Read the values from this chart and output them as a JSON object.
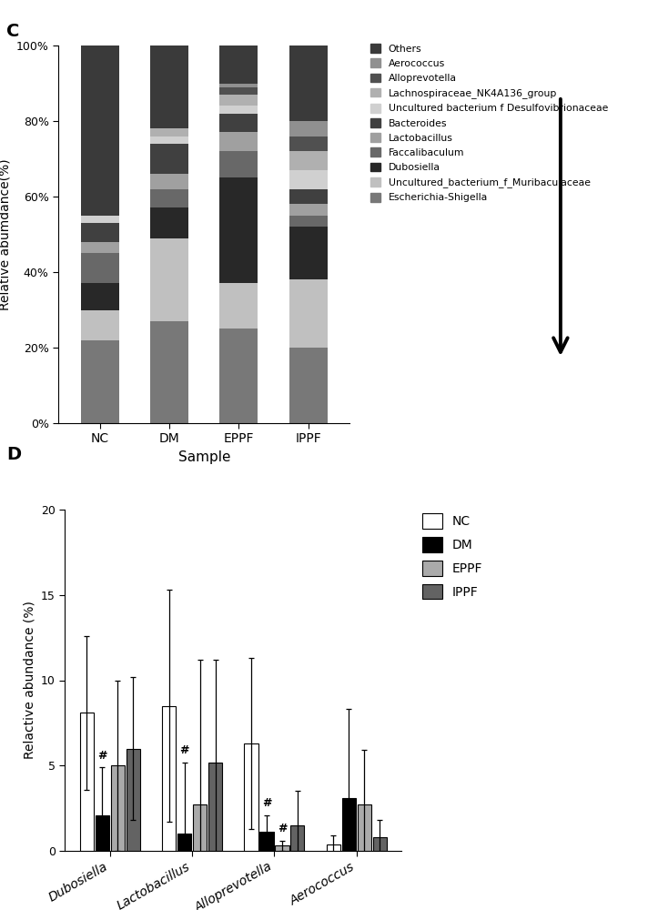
{
  "panel_C_label": "C",
  "panel_D_label": "D",
  "stacked_categories": [
    "NC",
    "DM",
    "EPPF",
    "IPPF"
  ],
  "stacked_xlabel": "Sample",
  "stacked_ylabel": "Relative abumdance(%)",
  "legend_labels": [
    "Others",
    "Aerococcus",
    "Alloprevotella",
    "Lachnospiraceae_NK4A136_group",
    "Uncultured bacterium f Desulfovibrionaceae",
    "Bacteroides",
    "Lactobacillus",
    "Faccalibaculum",
    "Dubosiella",
    "Uncultured_bacterium_f_Muribaculaceae",
    "Escherichia-Shigella"
  ],
  "legend_colors": [
    "#3a3a3a",
    "#909090",
    "#505050",
    "#b0b0b0",
    "#d0d0d0",
    "#404040",
    "#a0a0a0",
    "#686868",
    "#282828",
    "#c0c0c0",
    "#787878"
  ],
  "stacked_data_pct": {
    "NC": [
      45,
      0,
      0,
      0,
      2,
      5,
      3,
      8,
      7,
      8,
      22
    ],
    "DM": [
      22,
      0,
      0,
      2,
      2,
      8,
      4,
      5,
      8,
      22,
      27
    ],
    "EPPF": [
      10,
      1,
      2,
      3,
      2,
      5,
      5,
      7,
      28,
      12,
      25
    ],
    "IPPF": [
      20,
      4,
      4,
      5,
      5,
      4,
      3,
      3,
      14,
      18,
      20
    ]
  },
  "bar_chart_groups": [
    "Dubosiella",
    "Lactobacillus",
    "Alloprevotella",
    "Aerococcus"
  ],
  "bar_ylabel": "Relactive abundance (%)",
  "bar_ylim": [
    0,
    20
  ],
  "bar_yticks": [
    0,
    5,
    10,
    15,
    20
  ],
  "bar_group_colors": [
    "#ffffff",
    "#000000",
    "#aaaaaa",
    "#636363"
  ],
  "bar_group_labels": [
    "NC",
    "DM",
    "EPPF",
    "IPPF"
  ],
  "bar_data": {
    "Dubosiella": {
      "NC": 8.1,
      "DM": 2.1,
      "EPPF": 5.0,
      "IPPF": 6.0
    },
    "Lactobacillus": {
      "NC": 8.5,
      "DM": 1.0,
      "EPPF": 2.7,
      "IPPF": 5.2
    },
    "Alloprevotella": {
      "NC": 6.3,
      "DM": 1.1,
      "EPPF": 0.3,
      "IPPF": 1.5
    },
    "Aerococcus": {
      "NC": 0.4,
      "DM": 3.1,
      "EPPF": 2.7,
      "IPPF": 0.8
    }
  },
  "bar_errors": {
    "Dubosiella": {
      "NC": 4.5,
      "DM": 2.8,
      "EPPF": 5.0,
      "IPPF": 4.2
    },
    "Lactobacillus": {
      "NC": 6.8,
      "DM": 4.2,
      "EPPF": 8.5,
      "IPPF": 6.0
    },
    "Alloprevotella": {
      "NC": 5.0,
      "DM": 1.0,
      "EPPF": 0.3,
      "IPPF": 2.0
    },
    "Aerococcus": {
      "NC": 0.5,
      "DM": 5.2,
      "EPPF": 3.2,
      "IPPF": 1.0
    }
  },
  "hash_marks": {
    "Dubosiella": [
      "DM"
    ],
    "Lactobacillus": [
      "DM"
    ],
    "Alloprevotella": [
      "DM",
      "EPPF"
    ],
    "Aerococcus": []
  }
}
